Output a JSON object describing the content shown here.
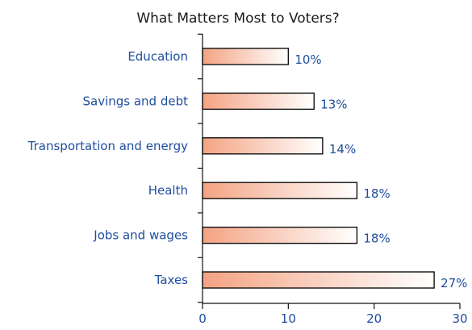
{
  "chart_data": {
    "type": "bar",
    "orientation": "horizontal",
    "title": "What Matters Most to Voters?",
    "categories": [
      "Education",
      "Savings and debt",
      "Transportation and energy",
      "Health",
      "Jobs and wages",
      "Taxes"
    ],
    "values": [
      10,
      13,
      14,
      18,
      18,
      27
    ],
    "value_labels": [
      "10%",
      "13%",
      "14%",
      "18%",
      "18%",
      "27%"
    ],
    "xlim": [
      0,
      30
    ],
    "x_ticks": [
      0,
      10,
      20,
      30
    ],
    "xlabel": "",
    "ylabel": "",
    "grid": false,
    "legend": null,
    "colors": {
      "bar_gradient_start": "#f4a383",
      "bar_gradient_end": "#ffffff",
      "label_text": "#1f4e9e",
      "title_text": "#1a1a1a",
      "axis": "#111111"
    }
  }
}
